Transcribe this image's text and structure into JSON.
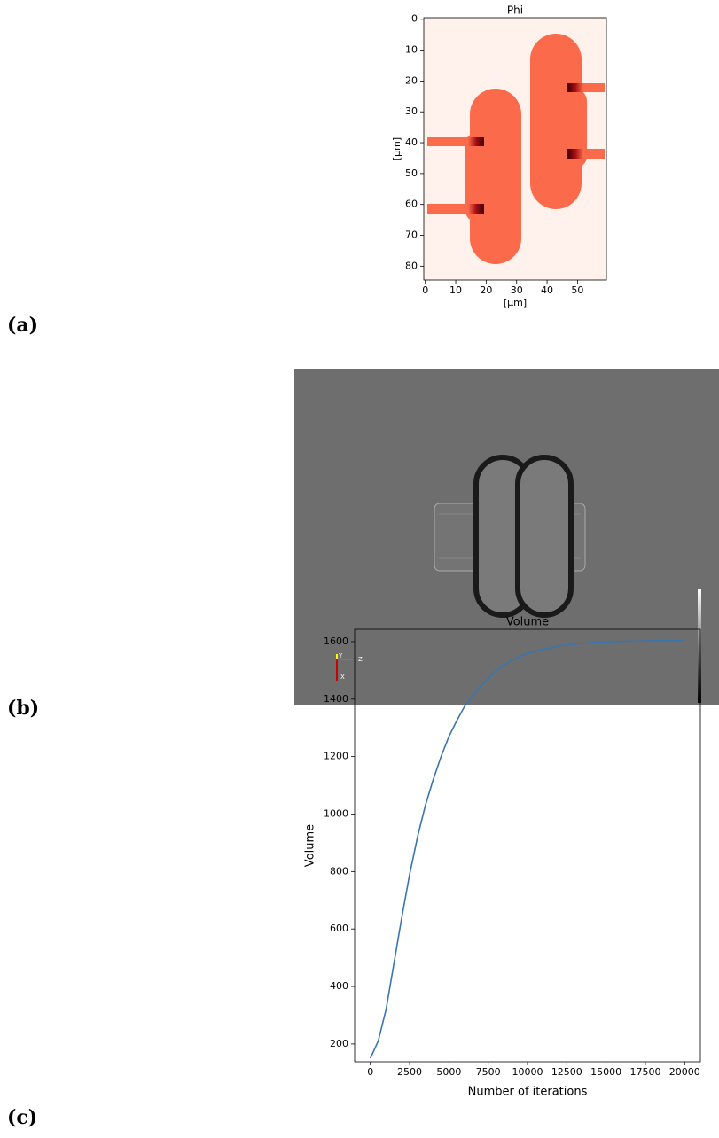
{
  "panel_labels": [
    "(a)",
    "(b)",
    "(c)"
  ],
  "chart_data": [
    {
      "type": "image",
      "title": "Phi",
      "xlabel": "[µm]",
      "ylabel": "[µm]",
      "xlim": [
        -0.5,
        59.5
      ],
      "ylim": [
        84.5,
        -0.5
      ],
      "xticks": [
        0,
        10,
        20,
        30,
        40,
        50
      ],
      "yticks": [
        0,
        10,
        20,
        30,
        40,
        50,
        60,
        70,
        80
      ]
    },
    {
      "type": "render",
      "axis_labels": [
        "Y",
        "Z",
        "X"
      ]
    },
    {
      "type": "line",
      "title": "Volume",
      "xlabel": "Number of iterations",
      "ylabel": "Volume",
      "xlim": [
        -1000,
        21000
      ],
      "ylim": [
        138,
        1643
      ],
      "xticks": [
        0,
        2500,
        5000,
        7500,
        10000,
        12500,
        15000,
        17500,
        20000
      ],
      "yticks": [
        200,
        400,
        600,
        800,
        1000,
        1200,
        1400,
        1600
      ],
      "x": [
        0,
        500,
        1000,
        1500,
        2000,
        2500,
        3000,
        3500,
        4000,
        4500,
        5000,
        5500,
        6000,
        7000,
        8000,
        9000,
        10000,
        12000,
        14000,
        16000,
        18000,
        20000
      ],
      "series": [
        {
          "name": "Volume",
          "color": "#3b75af",
          "values": [
            150,
            210,
            320,
            480,
            640,
            790,
            920,
            1030,
            1120,
            1200,
            1270,
            1325,
            1375,
            1445,
            1500,
            1535,
            1560,
            1585,
            1597,
            1601,
            1603,
            1604
          ]
        }
      ]
    }
  ]
}
